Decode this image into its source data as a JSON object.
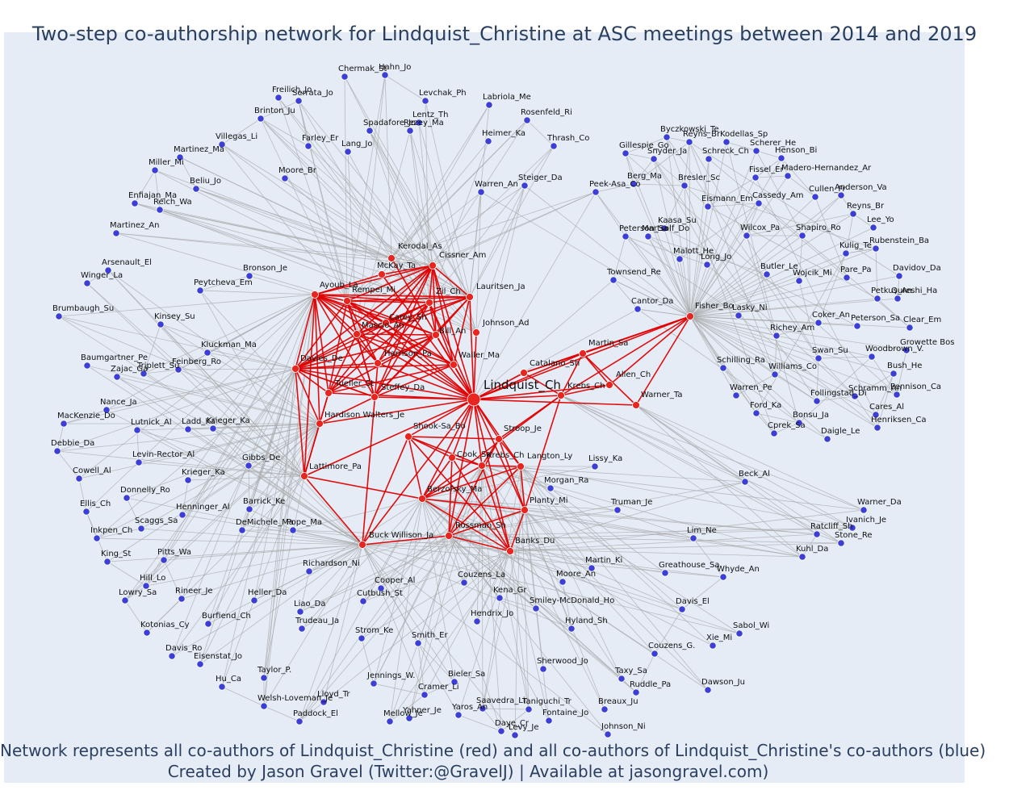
{
  "title": "Two-step co-authorship network for Lindquist_Christine at ASC meetings between 2014 and 2019",
  "footer_line1": "Network represents all co-authors of Lindquist_Christine (red) and all co-authors of Lindquist_Christine's co-authors (blue)",
  "footer_line2": "Created by Jason Gravel (Twitter:@GravelJ) | Available at jasongravel.com)",
  "colors": {
    "background": "#e5ecf6",
    "red_node": "#e8261f",
    "blue_node": "#3b3fd8",
    "red_edge": "#e00000",
    "gray_edge": "#a6a6a6",
    "title": "#2a3f5f"
  },
  "focal": "Lindquist_Ch",
  "red_nodes": [
    "Lindquist_Ch",
    "Kerodal_As",
    "Cissner_Am",
    "Ayoub_La",
    "McKay_Ta",
    "Rempel_Mi",
    "Zil_Ch",
    "Lauritsen_Ja",
    "Carey_Sh",
    "Mascio_An",
    "Bill_An",
    "Johnson_Ad",
    "Harrison_Pa",
    "Waller_Ma",
    "Davies_De",
    "Tueller_St",
    "Steffey_Da",
    "Catalano_Sh",
    "Martin_Sa",
    "Krebs_Ch",
    "Allen_Ch",
    "Warner_Ta",
    "Hardison Walters_Je",
    "Shook-Sa_Bo",
    "Stroop_Je",
    "Cook_Sa",
    "Krebs_Ch2",
    "Langton_Ly",
    "Berzofsky_Ma",
    "Planty_Mi",
    "Lattimore_Pa",
    "Rossman_Sh",
    "Banks_Du",
    "Buck Willison_Ja",
    "Fisher_Bo"
  ],
  "blue_nodes": [
    "Chermak_St",
    "Hahn_Jo",
    "Freilich_Jo",
    "Serrata_Jo",
    "Levchak_Ph",
    "Labriola_Me",
    "Brinton_Ju",
    "Lentz_Th",
    "Rosenfeld_Ri",
    "Rezey_Ma",
    "Heimer_Ka",
    "Spadafore_Jo",
    "Thrash_Co",
    "Villegas_Li",
    "Lang_Jo",
    "Martinez_Ma",
    "Farley_Er",
    "Miller_Mi",
    "Moore_Br",
    "Beliu_Jo",
    "Enfiajan_Ma",
    "Reich_Wa",
    "Martinez_An",
    "Warren_An",
    "Steiger_Da",
    "Arsenault_El",
    "Winger_La",
    "Bronson_Je",
    "Peytcheva_Em",
    "Brumbaugh_Su",
    "Kinsey_Su",
    "Kluckman_Ma",
    "Baumgartner_Pe",
    "Triplett_Su",
    "Feinberg_Ro",
    "Zajac_Ga",
    "Nance_Ja",
    "MacKenzie_Do",
    "Lutnick_Al",
    "Ladd_Ka",
    "Krieger_Ka",
    "Debbie_Da",
    "Levin-Rector_Al",
    "Gibbs_De",
    "Cowell_Al",
    "Krieger_Ka2",
    "Donnelly_Ro",
    "Ellis_Ch",
    "Henninger_Al",
    "Barrick_Ke",
    "Scaggs_Sa",
    "DeMichele_Ma",
    "Pope_Ma",
    "Inkpen_Ch",
    "King_St",
    "Pitts_Wa",
    "Hill_Lo",
    "Richardson_Ni",
    "Rineer_Je",
    "Lowry_Sa",
    "Heller_Da",
    "Cooper_Al",
    "Cutbush_St",
    "Liao_Da",
    "Burfiend_Ch",
    "Kotonias_Cy",
    "Trudeau_Ja",
    "Strom_Ke",
    "Smith_Er",
    "Davis_Ro",
    "Eisenstat_Jo",
    "Hu_Ca",
    "Taylor_P.",
    "Jennings_W.",
    "Bieler_Sa",
    "Welsh-Loveman_Je",
    "Cramer_Li",
    "Lloyd_Tr",
    "Paddock_El",
    "Mellow_Je",
    "Yahner_Je",
    "Yaros_An",
    "Saavedra_Li",
    "Daye_Cr",
    "Levy_Je",
    "Johnson_Ni",
    "Fontaine_Jo",
    "Taniguchi_Tr",
    "Breaux_Ju",
    "Ruddle_Pa",
    "Taxy_Sa",
    "Dawson_Ju",
    "Sherwood_Jo",
    "Couzens_G.",
    "Xie_Mi",
    "Sabol_Wi",
    "Hyland_Sh",
    "Davis_El",
    "Smiley-McDonald_Ho",
    "Hendrix_Jo",
    "Kena_Gr",
    "Couzens_La",
    "Moore_An",
    "Martin_Ki",
    "Whyde_An",
    "Greathouse_Sa",
    "Lim_Ne",
    "Truman_Je",
    "Morgan_Ra",
    "Lissy_Ka",
    "Beck_Al",
    "Kuhl_Da",
    "Stone_Re",
    "Ratcliff_Sh",
    "Ivanich_Je",
    "Warner_Da",
    "Townsend_Re",
    "Cantor_Da",
    "Peek-Asa_Co",
    "Berg_Ma",
    "Gillespie_Go",
    "Snyder_Ja",
    "Byczkowski_Te",
    "Reyns_Br",
    "Kodellas_Sp",
    "Scherer_He",
    "Schreck_Ch",
    "Henson_Bi",
    "Fissel_Er",
    "Madero-Hernandez_Ar",
    "Bresler_Sc",
    "Eismann_Em",
    "Cassedy_Am",
    "Cullen_Fr",
    "Anderson_Va",
    "Peterson_Sa",
    "Reyns_Br2",
    "Kaasa_Su",
    "Martsolf_Do",
    "Wilcox_Pa",
    "Shapiro_Ro",
    "Lee_Yo",
    "Kulig_Te",
    "Rubenstein_Ba",
    "Malott_He",
    "Long_Jo",
    "Pare_Pa",
    "Butler_Le",
    "Wojcik_Mi",
    "Davidov_Da",
    "Petkus_An",
    "Qureshi_Ha",
    "Lasky_Ni",
    "Coker_An",
    "Peterson_Sa2",
    "Clear_Em",
    "Richey_Am",
    "Growette Bos",
    "Woodbrown_V.",
    "Swan_Su",
    "Schilling_Ra",
    "Williams_Co",
    "Bush_He",
    "Warren_Pe",
    "Follingstad_Di",
    "Schramm_An",
    "Pennison_Ca",
    "Cares_Al",
    "Ford_Ka",
    "Bonsu_Ja",
    "Henriksen_Ca",
    "Cprek_Sa",
    "Daigle_Le"
  ]
}
